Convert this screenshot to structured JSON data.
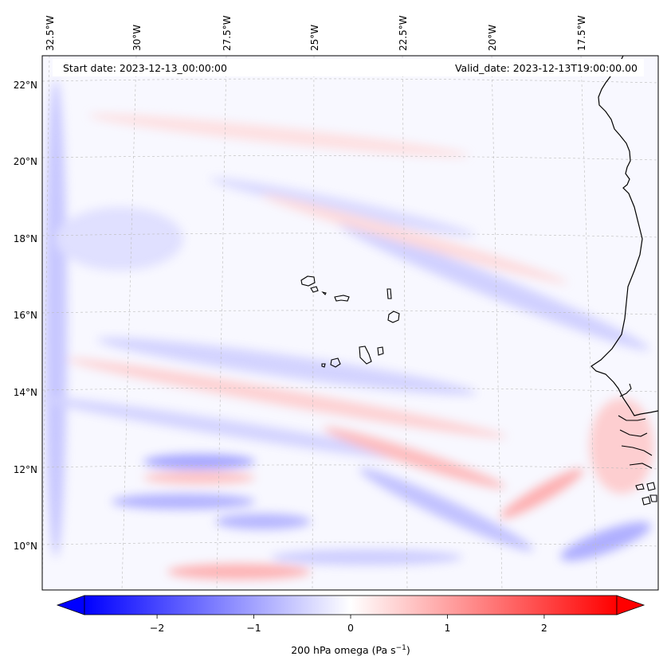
{
  "header": {
    "start_date": "Start date: 2023-12-13_00:00:00",
    "valid_date": "Valid_date: 2023-12-13T19:00:00.00"
  },
  "map": {
    "lon_labels": [
      "32.5°W",
      "30°W",
      "27.5°W",
      "25°W",
      "22.5°W",
      "20°W",
      "17.5°W"
    ],
    "lat_labels": [
      "22°N",
      "20°N",
      "18°N",
      "16°N",
      "14°N",
      "12°N",
      "10°N"
    ],
    "field_colors": {
      "negative": "#3333ff",
      "positive": "#ff3333",
      "neutral": "#ffffff"
    }
  },
  "colorbar": {
    "label": "200 hPa omega (Pa s",
    "label_sup": "−1",
    "label_close": ")",
    "ticks": [
      "−2",
      "−1",
      "0",
      "1",
      "2"
    ],
    "range": [
      -2.75,
      2.75
    ],
    "tick_values": [
      -2,
      -1,
      0,
      1,
      2
    ],
    "min_color": "#0000ff",
    "mid_color": "#ffffff",
    "max_color": "#ff0000"
  }
}
